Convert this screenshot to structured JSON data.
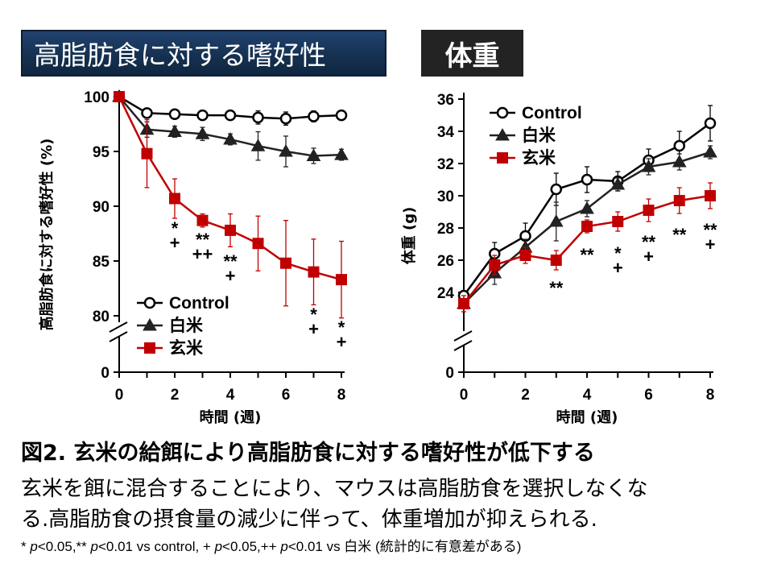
{
  "titles": {
    "left": "高脂肪食に対する嗜好性",
    "right": "体重"
  },
  "legend": [
    "Control",
    "白米",
    "玄米"
  ],
  "colors": {
    "control": "#000000",
    "hakumai": "#222222",
    "genmai": "#c00000"
  },
  "chart_data": [
    {
      "type": "line",
      "title": "高脂肪食に対する嗜好性",
      "xlabel": "時間 (週)",
      "ylabel": "高脂肪食に対する嗜好性 (%)",
      "x": [
        0,
        1,
        2,
        3,
        4,
        5,
        6,
        7,
        8
      ],
      "xticks": [
        "0",
        "2",
        "4",
        "6",
        "8"
      ],
      "yticks": [
        "0",
        "80",
        "85",
        "90",
        "95",
        "100"
      ],
      "ylim": [
        80,
        100
      ],
      "axis_break": true,
      "legend_position": "bottom-left",
      "series": [
        {
          "name": "Control",
          "marker": "open-circle",
          "values": [
            100,
            98.5,
            98.4,
            98.3,
            98.3,
            98.1,
            98.0,
            98.2,
            98.3
          ],
          "err": [
            0,
            0.4,
            0.4,
            0.4,
            0.4,
            0.6,
            0.6,
            0.5,
            0.4
          ]
        },
        {
          "name": "白米",
          "marker": "filled-triangle",
          "values": [
            100,
            97.0,
            96.8,
            96.6,
            96.1,
            95.5,
            95.0,
            94.6,
            94.7
          ],
          "err": [
            0,
            0.7,
            0.5,
            0.6,
            0.5,
            1.3,
            1.4,
            0.7,
            0.5
          ]
        },
        {
          "name": "玄米",
          "marker": "filled-square",
          "values": [
            100,
            94.8,
            90.7,
            88.7,
            87.8,
            86.6,
            84.8,
            84.0,
            83.3
          ],
          "err": [
            0,
            3.1,
            1.8,
            0.6,
            1.5,
            2.5,
            3.9,
            3.0,
            3.5
          ]
        }
      ],
      "annotations": [
        {
          "x": 2,
          "lines": [
            "*",
            "+"
          ]
        },
        {
          "x": 3,
          "lines": [
            "**",
            "++"
          ]
        },
        {
          "x": 4,
          "lines": [
            "**",
            "+"
          ]
        },
        {
          "x": 7,
          "lines": [
            "*",
            "+"
          ]
        },
        {
          "x": 8,
          "lines": [
            "*",
            "+"
          ]
        }
      ]
    },
    {
      "type": "line",
      "title": "体重",
      "xlabel": "時間 (週)",
      "ylabel": "体重 (g)",
      "x": [
        0,
        1,
        2,
        3,
        4,
        5,
        6,
        7,
        8
      ],
      "xticks": [
        "0",
        "2",
        "4",
        "6",
        "8"
      ],
      "yticks": [
        "0",
        "24",
        "26",
        "28",
        "30",
        "32",
        "34",
        "36"
      ],
      "ylim": [
        22,
        36
      ],
      "axis_break": true,
      "legend_position": "top-left",
      "series": [
        {
          "name": "Control",
          "marker": "open-circle",
          "values": [
            23.8,
            26.4,
            27.5,
            30.4,
            31.0,
            30.9,
            32.2,
            33.1,
            34.5
          ],
          "err": [
            0.3,
            0.7,
            0.8,
            1.0,
            0.8,
            0.6,
            0.7,
            0.9,
            1.1
          ]
        },
        {
          "name": "白米",
          "marker": "filled-triangle",
          "values": [
            23.3,
            25.2,
            26.8,
            28.4,
            29.2,
            30.7,
            31.8,
            32.1,
            32.7
          ],
          "err": [
            0.3,
            0.7,
            0.5,
            1.2,
            0.5,
            0.4,
            0.5,
            0.5,
            0.4
          ]
        },
        {
          "name": "玄米",
          "marker": "filled-square",
          "values": [
            23.3,
            25.7,
            26.3,
            26.0,
            28.1,
            28.4,
            29.1,
            29.7,
            30.0
          ],
          "err": [
            0.5,
            0.6,
            0.5,
            0.6,
            0.4,
            0.6,
            0.7,
            0.8,
            0.8
          ]
        }
      ],
      "annotations": [
        {
          "x": 3,
          "lines": [
            "**"
          ]
        },
        {
          "x": 4,
          "lines": [
            "**"
          ]
        },
        {
          "x": 5,
          "lines": [
            "*",
            "+"
          ]
        },
        {
          "x": 6,
          "lines": [
            "**",
            "+"
          ]
        },
        {
          "x": 7,
          "lines": [
            "**"
          ]
        },
        {
          "x": 8,
          "lines": [
            "**",
            "+"
          ]
        }
      ]
    }
  ],
  "caption": {
    "title": "図2. 玄米の給餌により高脂肪食に対する嗜好性が低下する",
    "body1": "玄米を餌に混合することにより、マウスは高脂肪食を選択しなくな",
    "body2": "る.高脂肪食の摂食量の減少に伴って、体重増加が抑えられる.",
    "note_parts": [
      "* ",
      "p",
      "<0.05,** ",
      "p",
      "<0.01 vs control, + ",
      "p",
      "<0.05,++ ",
      "p",
      "<0.01 vs 白米 (統計的に有意差がある)"
    ]
  }
}
